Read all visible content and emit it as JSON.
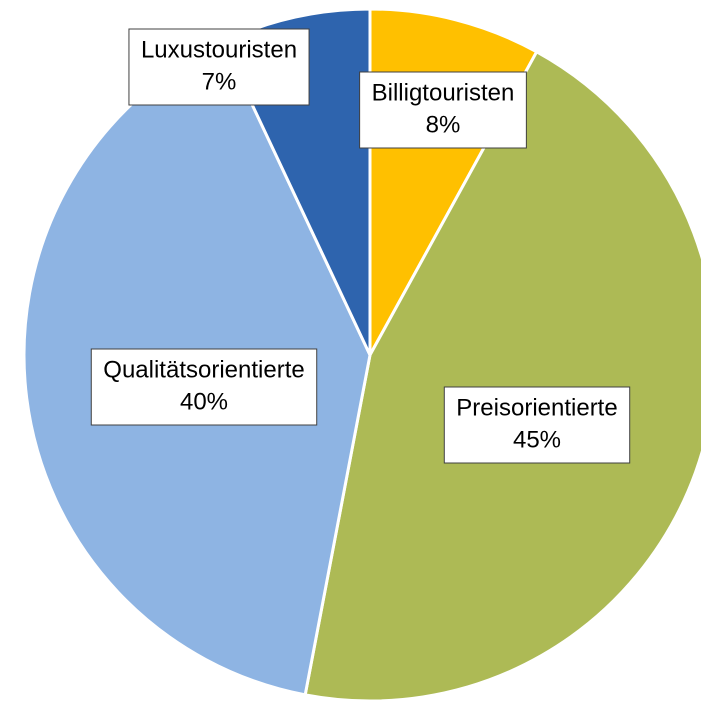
{
  "chart_data": {
    "type": "pie",
    "categories": [
      "Billigtouristen",
      "Preisorientierte",
      "Qualitätsorientierte",
      "Luxustouristen"
    ],
    "values": [
      8,
      45,
      40,
      7
    ],
    "value_labels": [
      "8%",
      "45%",
      "40%",
      "7%"
    ],
    "colors": [
      "#FFC000",
      "#ADBA55",
      "#8EB4E3",
      "#2E64AE"
    ]
  }
}
